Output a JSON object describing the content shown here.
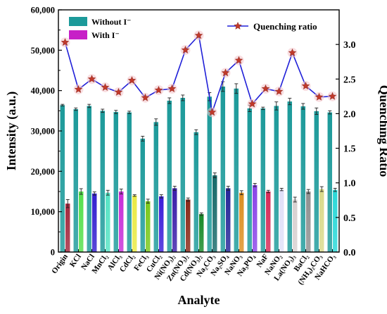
{
  "chart_data": {
    "type": "bar",
    "title": "",
    "xlabel": "Analyte",
    "ylabel": "Intensity (a.u.)",
    "y2label": "Quenching Ratio",
    "ylim": [
      0,
      60000
    ],
    "y2lim": [
      0,
      3.5
    ],
    "yticks": [
      "0",
      "10,000",
      "20,000",
      "30,000",
      "40,000",
      "50,000",
      "60,000"
    ],
    "y2ticks": [
      "0.0",
      "0.5",
      "1.0",
      "1.5",
      "2.0",
      "2.5",
      "3.0"
    ],
    "categories": [
      "Origin",
      "KCl",
      "NaCl",
      "MnCl₂",
      "AlCl₃",
      "CdCl₂",
      "FeCl₃",
      "CuCl₂",
      "Ni(NO₃)₂",
      "Zn(NO₃)₂",
      "Cd(NO₃)₂",
      "Na₂CO₃",
      "Na₂SO₄",
      "NaNO₃",
      "Na₃PO₄",
      "NaF",
      "NaNO₂",
      "La(NO₃)₃",
      "BaCl₂",
      "(NH₄)₂CO₃",
      "NaHCO₃"
    ],
    "series": [
      {
        "name": "Without I⁻",
        "kind": "bar",
        "values": [
          36400,
          35400,
          36200,
          35000,
          34700,
          34600,
          28100,
          32200,
          37500,
          38200,
          29700,
          38500,
          41000,
          40500,
          35600,
          35600,
          36200,
          37300,
          36100,
          34900,
          34600
        ],
        "errors": [
          200,
          300,
          400,
          400,
          400,
          300,
          600,
          800,
          700,
          700,
          600,
          1000,
          1200,
          1200,
          800,
          300,
          1000,
          800,
          700,
          800,
          400
        ],
        "color": "#1c9a9a"
      },
      {
        "name": "With I⁻",
        "kind": "bar",
        "values": [
          12000,
          15000,
          14500,
          14700,
          15000,
          14000,
          12600,
          13800,
          15800,
          13000,
          9400,
          19000,
          15800,
          14700,
          16600,
          15000,
          15500,
          13000,
          15000,
          15600,
          15400
        ],
        "errors": [
          1000,
          700,
          400,
          600,
          600,
          200,
          500,
          400,
          500,
          400,
          300,
          600,
          500,
          500,
          400,
          300,
          300,
          600,
          500,
          600,
          400
        ],
        "colors": [
          "#a3283e",
          "#55e04c",
          "#3320cf",
          "#55e3c4",
          "#c72ed8",
          "#eaea44",
          "#7ac81c",
          "#3b1ed9",
          "#3b1ea9",
          "#8a2818",
          "#188a28",
          "#186a6a",
          "#262699",
          "#dd8f22",
          "#8a44e8",
          "#d62a58",
          "#e0e0f8",
          "#d8d0d0",
          "#909090",
          "#dada8a",
          "#2ad8d8"
        ]
      },
      {
        "name": "Quenching ratio",
        "kind": "line",
        "axis": "right",
        "values": [
          3.03,
          2.35,
          2.5,
          2.38,
          2.31,
          2.48,
          2.23,
          2.34,
          2.36,
          2.92,
          3.13,
          2.02,
          2.59,
          2.77,
          2.14,
          2.36,
          2.32,
          2.88,
          2.4,
          2.24,
          2.25
        ],
        "color": "#2020d8",
        "marker_color": "#c0392b"
      }
    ],
    "legend": [
      {
        "label": "Without I⁻",
        "color": "#1c9a9a",
        "placement": "top-left"
      },
      {
        "label": "With I⁻",
        "color": "#c71fc7",
        "placement": "top-left"
      },
      {
        "label": "Quenching ratio",
        "color": "#2020d8",
        "placement": "top-right"
      }
    ],
    "grid": false
  }
}
